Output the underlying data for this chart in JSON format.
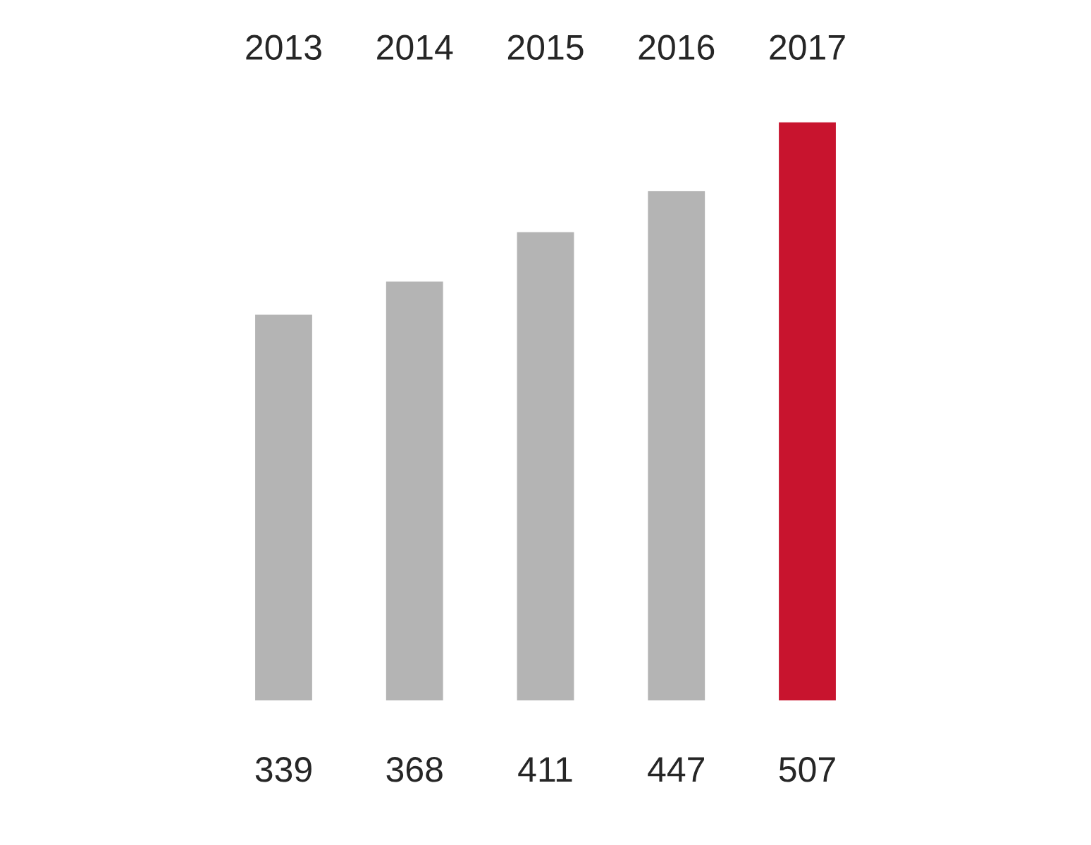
{
  "chart_data": {
    "type": "bar",
    "categories": [
      "2013",
      "2014",
      "2015",
      "2016",
      "2017"
    ],
    "values": [
      339,
      368,
      411,
      447,
      507
    ],
    "colors": [
      "#b4b4b4",
      "#b4b4b4",
      "#b4b4b4",
      "#b4b4b4",
      "#c8142e"
    ],
    "data_labels": true,
    "grid": false,
    "legend": false
  }
}
